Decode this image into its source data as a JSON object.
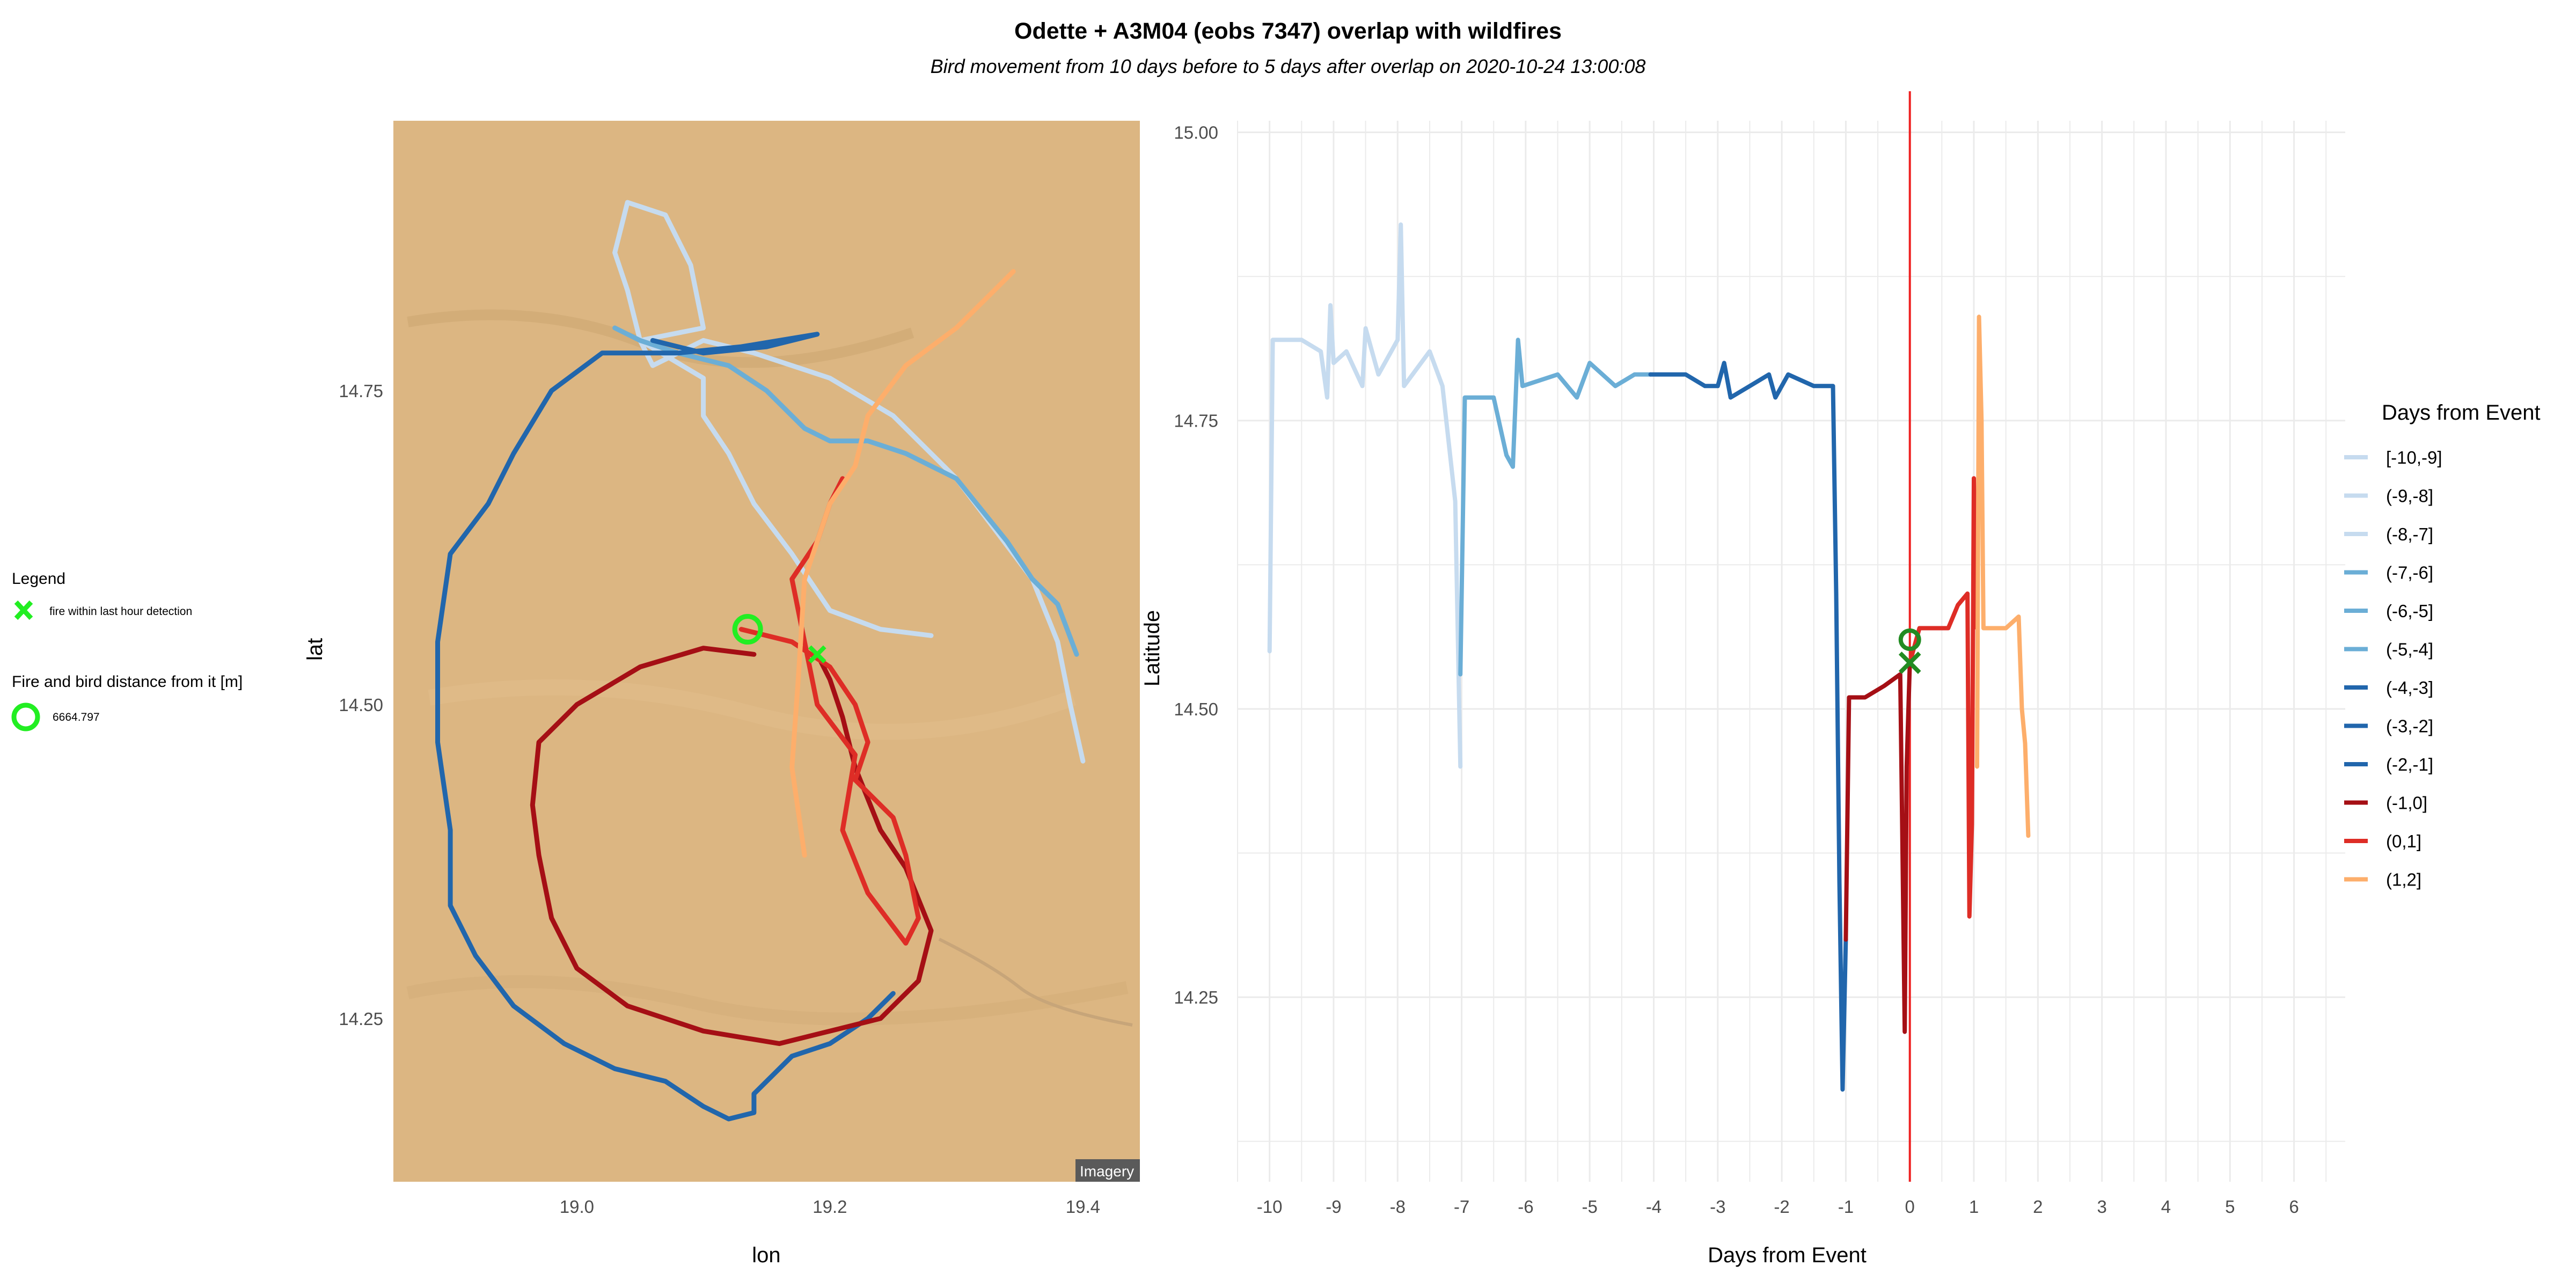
{
  "title": "Odette + A3M04 (eobs 7347) overlap with wildfires",
  "subtitle": "Bird movement from 10 days before to 5 days after overlap on 2020-10-24 13:00:08",
  "left_legend": {
    "title": "Legend",
    "fire_label": "fire within last hour detection",
    "distance_title": "Fire and bird distance from it [m]",
    "distance_value": "6664.797",
    "fire_color": "#22ee22"
  },
  "map_attribution": "Imagery",
  "colors": {
    "map_background": "#dcb682",
    "event_line": "#ee2222",
    "marker_map": "#22ee22",
    "marker_ts": "#228b22"
  },
  "legend": {
    "title": "Days from Event",
    "entries": [
      {
        "label": "[-10,-9]",
        "color": "#c6dbef"
      },
      {
        "label": "(-9,-8]",
        "color": "#c6dbef"
      },
      {
        "label": "(-8,-7]",
        "color": "#c6dbef"
      },
      {
        "label": "(-7,-6]",
        "color": "#6baed6"
      },
      {
        "label": "(-6,-5]",
        "color": "#6baed6"
      },
      {
        "label": "(-5,-4]",
        "color": "#6baed6"
      },
      {
        "label": "(-4,-3]",
        "color": "#2166ac"
      },
      {
        "label": "(-3,-2]",
        "color": "#2166ac"
      },
      {
        "label": "(-2,-1]",
        "color": "#2166ac"
      },
      {
        "label": "(-1,0]",
        "color": "#a50f15"
      },
      {
        "label": "(0,1]",
        "color": "#de2d26"
      },
      {
        "label": "(1,2]",
        "color": "#fdae6b"
      }
    ]
  },
  "chart_data": [
    {
      "type": "line",
      "panel": "map",
      "xlabel": "lon",
      "ylabel": "lat",
      "xlim": [
        18.855,
        19.445
      ],
      "ylim": [
        14.12,
        14.965
      ],
      "xticks": [
        "19.0",
        "19.2",
        "19.4"
      ],
      "yticks": [
        "14.25",
        "14.50",
        "14.75"
      ],
      "fire_point": {
        "lon": 19.19,
        "lat": 14.54
      },
      "bird_point": {
        "lon": 19.135,
        "lat": 14.56
      },
      "series": [
        {
          "group": "[-10,-7]",
          "color": "#c6dbef",
          "points": [
            [
              19.28,
              14.555
            ],
            [
              19.24,
              14.56
            ],
            [
              19.2,
              14.575
            ],
            [
              19.17,
              14.62
            ],
            [
              19.14,
              14.66
            ],
            [
              19.12,
              14.7
            ],
            [
              19.1,
              14.73
            ],
            [
              19.1,
              14.76
            ],
            [
              19.05,
              14.79
            ],
            [
              19.04,
              14.83
            ],
            [
              19.03,
              14.86
            ],
            [
              19.04,
              14.9
            ],
            [
              19.07,
              14.89
            ],
            [
              19.09,
              14.85
            ],
            [
              19.1,
              14.8
            ],
            [
              19.05,
              14.79
            ],
            [
              19.06,
              14.77
            ],
            [
              19.1,
              14.79
            ],
            [
              19.14,
              14.78
            ],
            [
              19.2,
              14.76
            ],
            [
              19.25,
              14.73
            ],
            [
              19.3,
              14.68
            ],
            [
              19.33,
              14.64
            ],
            [
              19.36,
              14.6
            ],
            [
              19.38,
              14.55
            ],
            [
              19.39,
              14.5
            ],
            [
              19.4,
              14.455
            ]
          ]
        },
        {
          "group": "(-7,-4]",
          "color": "#6baed6",
          "points": [
            [
              19.03,
              14.8
            ],
            [
              19.05,
              14.79
            ],
            [
              19.08,
              14.78
            ],
            [
              19.12,
              14.77
            ],
            [
              19.15,
              14.75
            ],
            [
              19.18,
              14.72
            ],
            [
              19.2,
              14.71
            ],
            [
              19.23,
              14.71
            ],
            [
              19.26,
              14.7
            ],
            [
              19.3,
              14.68
            ],
            [
              19.34,
              14.63
            ],
            [
              19.36,
              14.6
            ],
            [
              19.38,
              14.58
            ],
            [
              19.395,
              14.54
            ]
          ]
        },
        {
          "group": "(-4,-1]",
          "color": "#2166ac",
          "points": [
            [
              19.06,
              14.79
            ],
            [
              19.1,
              14.78
            ],
            [
              19.15,
              14.785
            ],
            [
              19.19,
              14.795
            ],
            [
              19.13,
              14.785
            ],
            [
              19.08,
              14.78
            ],
            [
              19.02,
              14.78
            ],
            [
              18.98,
              14.75
            ],
            [
              18.95,
              14.7
            ],
            [
              18.93,
              14.66
            ],
            [
              18.9,
              14.62
            ],
            [
              18.89,
              14.55
            ],
            [
              18.89,
              14.47
            ],
            [
              18.9,
              14.4
            ],
            [
              18.9,
              14.34
            ],
            [
              18.92,
              14.3
            ],
            [
              18.95,
              14.26
            ],
            [
              18.99,
              14.23
            ],
            [
              19.03,
              14.21
            ],
            [
              19.07,
              14.2
            ],
            [
              19.1,
              14.18
            ],
            [
              19.12,
              14.17
            ],
            [
              19.14,
              14.175
            ],
            [
              19.14,
              14.19
            ],
            [
              19.15,
              14.2
            ],
            [
              19.17,
              14.22
            ],
            [
              19.2,
              14.23
            ],
            [
              19.23,
              14.25
            ],
            [
              19.25,
              14.27
            ]
          ]
        },
        {
          "group": "(-1,0]",
          "color": "#a50f15",
          "points": [
            [
              19.14,
              14.54
            ],
            [
              19.1,
              14.545
            ],
            [
              19.05,
              14.53
            ],
            [
              19.0,
              14.5
            ],
            [
              18.97,
              14.47
            ],
            [
              18.965,
              14.42
            ],
            [
              18.97,
              14.38
            ],
            [
              18.98,
              14.33
            ],
            [
              19.0,
              14.29
            ],
            [
              19.04,
              14.26
            ],
            [
              19.1,
              14.24
            ],
            [
              19.16,
              14.23
            ],
            [
              19.2,
              14.24
            ],
            [
              19.24,
              14.25
            ],
            [
              19.27,
              14.28
            ],
            [
              19.28,
              14.32
            ],
            [
              19.26,
              14.37
            ],
            [
              19.24,
              14.4
            ],
            [
              19.22,
              14.45
            ],
            [
              19.21,
              14.49
            ],
            [
              19.2,
              14.52
            ],
            [
              19.19,
              14.54
            ]
          ]
        },
        {
          "group": "(0,1]",
          "color": "#de2d26",
          "points": [
            [
              19.13,
              14.56
            ],
            [
              19.17,
              14.55
            ],
            [
              19.2,
              14.53
            ],
            [
              19.22,
              14.5
            ],
            [
              19.23,
              14.47
            ],
            [
              19.22,
              14.44
            ],
            [
              19.25,
              14.41
            ],
            [
              19.26,
              14.38
            ],
            [
              19.27,
              14.33
            ],
            [
              19.26,
              14.31
            ],
            [
              19.23,
              14.35
            ],
            [
              19.21,
              14.4
            ],
            [
              19.22,
              14.46
            ],
            [
              19.19,
              14.5
            ],
            [
              19.18,
              14.55
            ],
            [
              19.17,
              14.6
            ],
            [
              19.19,
              14.63
            ],
            [
              19.2,
              14.66
            ],
            [
              19.21,
              14.68
            ]
          ]
        },
        {
          "group": "(1,2]",
          "color": "#fdae6b",
          "points": [
            [
              19.18,
              14.38
            ],
            [
              19.17,
              14.45
            ],
            [
              19.175,
              14.52
            ],
            [
              19.18,
              14.6
            ],
            [
              19.2,
              14.66
            ],
            [
              19.22,
              14.69
            ],
            [
              19.23,
              14.73
            ],
            [
              19.26,
              14.77
            ],
            [
              19.3,
              14.8
            ],
            [
              19.33,
              14.83
            ],
            [
              19.345,
              14.845
            ]
          ]
        }
      ]
    },
    {
      "type": "line",
      "panel": "timeseries",
      "xlabel": "Days from Event",
      "ylabel": "Latitude",
      "xlim": [
        -10.5,
        6.8
      ],
      "ylim": [
        14.09,
        15.01
      ],
      "xticks": [
        -10,
        -9,
        -8,
        -7,
        -6,
        -5,
        -4,
        -3,
        -2,
        -1,
        0,
        1,
        2,
        3,
        4,
        5,
        6
      ],
      "yticks": [
        "14.25",
        "14.50",
        "14.75",
        "15.00"
      ],
      "event_x": 0,
      "bird_point": {
        "x": 0,
        "lat": 14.56
      },
      "fire_point": {
        "x": 0,
        "lat": 14.54
      },
      "series": [
        {
          "group": "[-10,-7]",
          "color": "#c6dbef",
          "points": [
            [
              -10,
              14.55
            ],
            [
              -9.95,
              14.82
            ],
            [
              -9.5,
              14.82
            ],
            [
              -9.2,
              14.81
            ],
            [
              -9.1,
              14.77
            ],
            [
              -9.05,
              14.85
            ],
            [
              -9.0,
              14.8
            ],
            [
              -8.8,
              14.81
            ],
            [
              -8.55,
              14.78
            ],
            [
              -8.5,
              14.83
            ],
            [
              -8.3,
              14.79
            ],
            [
              -8.0,
              14.82
            ],
            [
              -7.95,
              14.92
            ],
            [
              -7.9,
              14.78
            ],
            [
              -7.5,
              14.81
            ],
            [
              -7.3,
              14.78
            ],
            [
              -7.1,
              14.68
            ],
            [
              -7.02,
              14.45
            ]
          ]
        },
        {
          "group": "(-7,-4]",
          "color": "#6baed6",
          "points": [
            [
              -7.02,
              14.53
            ],
            [
              -6.95,
              14.77
            ],
            [
              -6.5,
              14.77
            ],
            [
              -6.3,
              14.72
            ],
            [
              -6.2,
              14.71
            ],
            [
              -6.12,
              14.82
            ],
            [
              -6.05,
              14.78
            ],
            [
              -5.5,
              14.79
            ],
            [
              -5.2,
              14.77
            ],
            [
              -5.0,
              14.8
            ],
            [
              -4.6,
              14.78
            ],
            [
              -4.3,
              14.79
            ],
            [
              -4.05,
              14.79
            ]
          ]
        },
        {
          "group": "(-4,-1]",
          "color": "#2166ac",
          "points": [
            [
              -4.05,
              14.79
            ],
            [
              -3.5,
              14.79
            ],
            [
              -3.2,
              14.78
            ],
            [
              -3.0,
              14.78
            ],
            [
              -2.9,
              14.8
            ],
            [
              -2.8,
              14.77
            ],
            [
              -2.5,
              14.78
            ],
            [
              -2.2,
              14.79
            ],
            [
              -2.1,
              14.77
            ],
            [
              -1.9,
              14.79
            ],
            [
              -1.5,
              14.78
            ],
            [
              -1.2,
              14.78
            ],
            [
              -1.15,
              14.6
            ],
            [
              -1.1,
              14.35
            ],
            [
              -1.05,
              14.17
            ],
            [
              -1.0,
              14.3
            ]
          ]
        },
        {
          "group": "(-1,0]",
          "color": "#a50f15",
          "points": [
            [
              -1.0,
              14.3
            ],
            [
              -0.95,
              14.51
            ],
            [
              -0.7,
              14.51
            ],
            [
              -0.4,
              14.52
            ],
            [
              -0.15,
              14.53
            ],
            [
              -0.12,
              14.4
            ],
            [
              -0.08,
              14.22
            ],
            [
              -0.05,
              14.45
            ],
            [
              0.0,
              14.54
            ]
          ]
        },
        {
          "group": "(0,1]",
          "color": "#de2d26",
          "points": [
            [
              0.0,
              14.54
            ],
            [
              0.15,
              14.57
            ],
            [
              0.6,
              14.57
            ],
            [
              0.75,
              14.59
            ],
            [
              0.9,
              14.6
            ],
            [
              0.93,
              14.32
            ],
            [
              0.97,
              14.4
            ],
            [
              1.0,
              14.7
            ],
            [
              1.05,
              14.57
            ]
          ]
        },
        {
          "group": "(1,2]",
          "color": "#fdae6b",
          "points": [
            [
              1.05,
              14.45
            ],
            [
              1.08,
              14.84
            ],
            [
              1.12,
              14.75
            ],
            [
              1.15,
              14.57
            ],
            [
              1.5,
              14.57
            ],
            [
              1.7,
              14.58
            ],
            [
              1.75,
              14.5
            ],
            [
              1.8,
              14.47
            ],
            [
              1.85,
              14.39
            ]
          ]
        }
      ]
    }
  ]
}
